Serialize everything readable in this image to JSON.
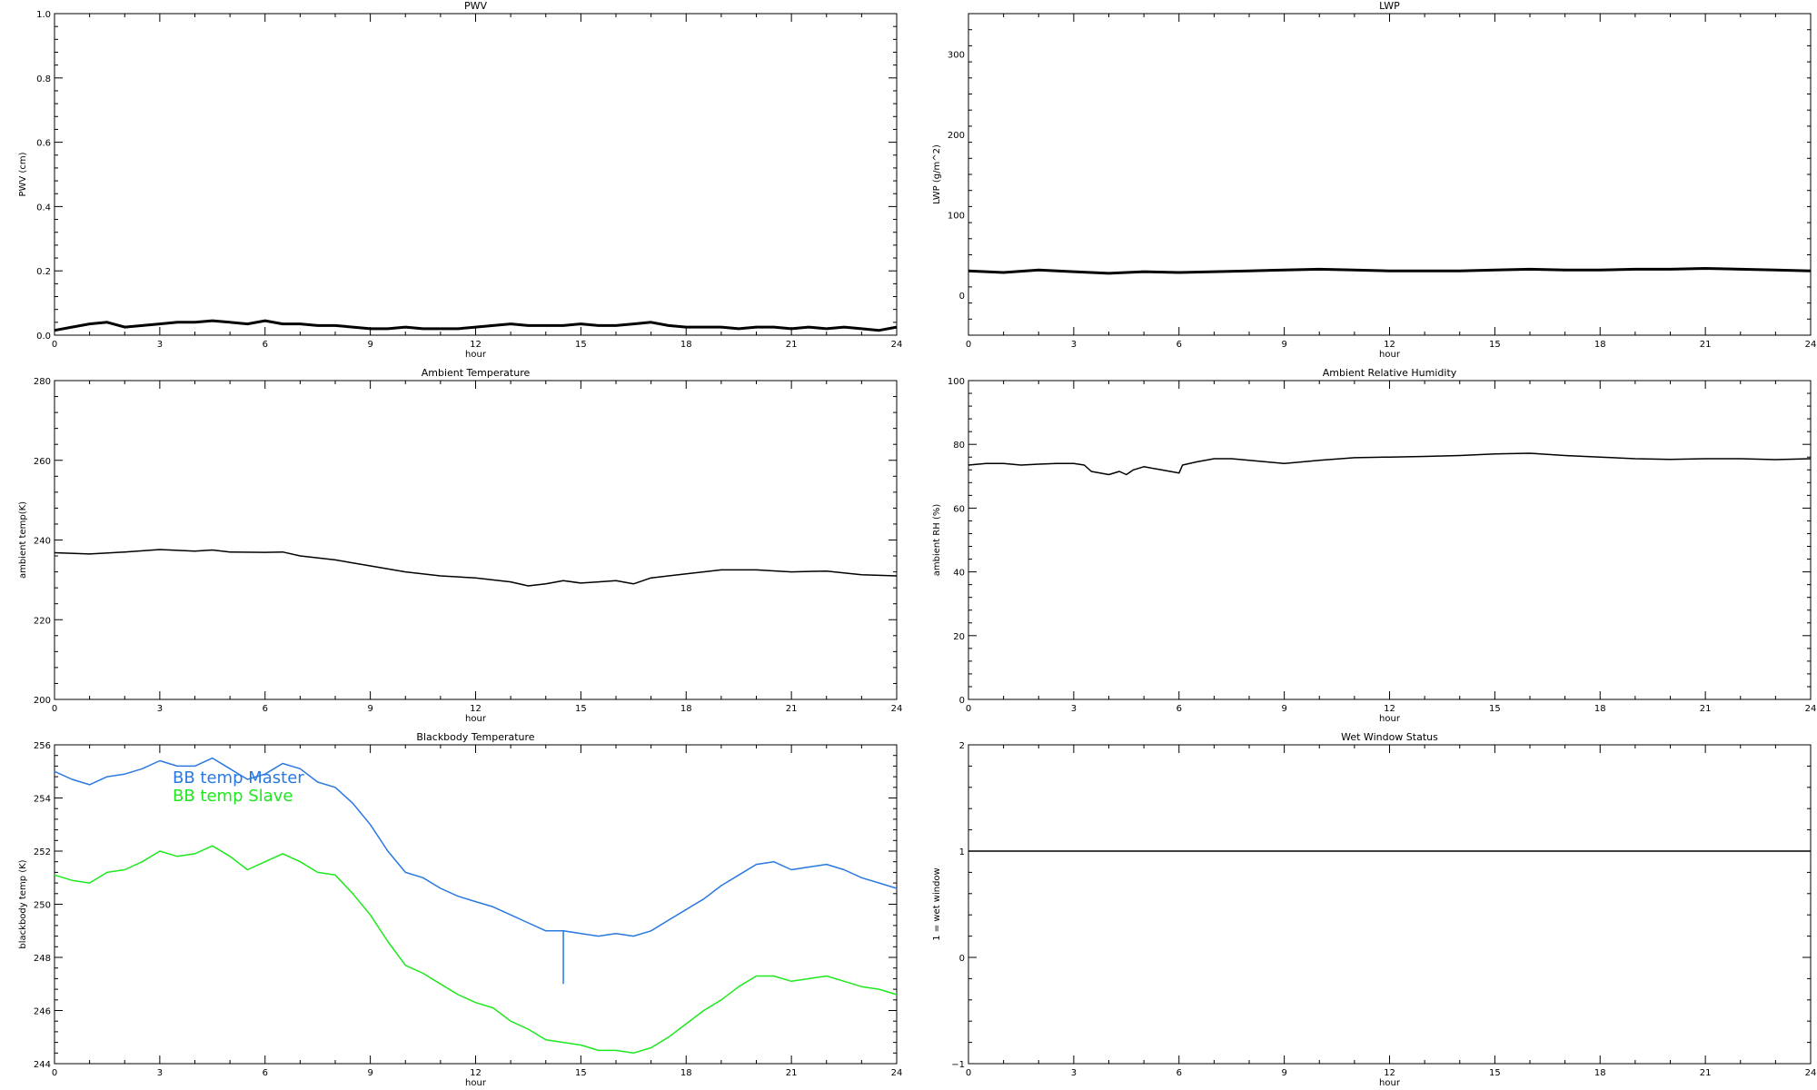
{
  "chart_data": [
    {
      "type": "line",
      "title": "PWV",
      "xlabel": "hour",
      "ylabel": "PWV (cm)",
      "xlim": [
        0,
        24
      ],
      "ylim": [
        0,
        1
      ],
      "xticks": [
        0,
        3,
        6,
        9,
        12,
        15,
        18,
        21,
        24
      ],
      "yticks": [
        0.0,
        0.2,
        0.4,
        0.6,
        0.8,
        1.0
      ],
      "ytick_labels": [
        "0.0",
        "0.2",
        "0.4",
        "0.6",
        "0.8",
        "1.0"
      ],
      "color_hint": "#000000",
      "series": [
        {
          "x": [
            0,
            0.5,
            1,
            1.5,
            2,
            2.5,
            3,
            3.5,
            4,
            4.5,
            5,
            5.5,
            6,
            6.5,
            7,
            7.5,
            8,
            8.5,
            9,
            9.5,
            10,
            10.5,
            11,
            11.5,
            12,
            12.5,
            13,
            13.5,
            14,
            14.5,
            15,
            15.5,
            16,
            16.5,
            17,
            17.5,
            18,
            18.5,
            19,
            19.5,
            20,
            20.5,
            21,
            21.5,
            22,
            22.5,
            23,
            23.5,
            24
          ],
          "values": [
            0.015,
            0.025,
            0.035,
            0.04,
            0.025,
            0.03,
            0.035,
            0.04,
            0.04,
            0.045,
            0.04,
            0.035,
            0.045,
            0.035,
            0.035,
            0.03,
            0.03,
            0.025,
            0.02,
            0.02,
            0.025,
            0.02,
            0.02,
            0.02,
            0.025,
            0.03,
            0.035,
            0.03,
            0.03,
            0.03,
            0.035,
            0.03,
            0.03,
            0.035,
            0.04,
            0.03,
            0.025,
            0.025,
            0.025,
            0.02,
            0.025,
            0.025,
            0.02,
            0.025,
            0.02,
            0.025,
            0.02,
            0.015,
            0.025
          ]
        }
      ]
    },
    {
      "type": "line",
      "title": "LWP",
      "xlabel": "hour",
      "ylabel": "LWP (g/m^2)",
      "xlim": [
        0,
        24
      ],
      "ylim": [
        -50,
        350
      ],
      "xticks": [
        0,
        3,
        6,
        9,
        12,
        15,
        18,
        21,
        24
      ],
      "yticks": [
        0,
        100,
        200,
        300
      ],
      "ytick_labels": [
        "0",
        "100",
        "200",
        "300"
      ],
      "series": [
        {
          "x": [
            0,
            1,
            2,
            3,
            4,
            5,
            6,
            7,
            8,
            9,
            10,
            11,
            12,
            13,
            14,
            15,
            16,
            17,
            18,
            19,
            20,
            21,
            22,
            23,
            24
          ],
          "values": [
            30,
            28,
            31,
            29,
            27,
            29,
            28,
            29,
            30,
            31,
            32,
            31,
            30,
            30,
            30,
            31,
            32,
            31,
            31,
            32,
            32,
            33,
            32,
            31,
            30
          ]
        }
      ]
    },
    {
      "type": "line",
      "title": "Ambient Temperature",
      "xlabel": "hour",
      "ylabel": "ambient temp(K)",
      "xlim": [
        0,
        24
      ],
      "ylim": [
        200,
        280
      ],
      "xticks": [
        0,
        3,
        6,
        9,
        12,
        15,
        18,
        21,
        24
      ],
      "yticks": [
        200,
        220,
        240,
        260,
        280
      ],
      "ytick_labels": [
        "200",
        "220",
        "240",
        "260",
        "280"
      ],
      "series": [
        {
          "x": [
            0,
            1,
            2,
            3,
            4,
            4.5,
            5,
            6,
            6.5,
            7,
            8,
            9,
            10,
            11,
            12,
            13,
            13.5,
            14,
            14.5,
            15,
            15.5,
            16,
            16.5,
            17,
            18,
            19,
            20,
            21,
            22,
            23,
            24
          ],
          "values": [
            236.8,
            236.5,
            237.0,
            237.6,
            237.2,
            237.5,
            237.0,
            236.9,
            237.0,
            236.0,
            235.0,
            233.5,
            232.0,
            231.0,
            230.5,
            229.5,
            228.5,
            229.0,
            229.8,
            229.2,
            229.5,
            229.8,
            229.0,
            230.5,
            231.5,
            232.5,
            232.5,
            232.0,
            232.2,
            231.3,
            231.0
          ]
        }
      ]
    },
    {
      "type": "line",
      "title": "Ambient Relative Humidity",
      "xlabel": "hour",
      "ylabel": "ambient RH (%)",
      "xlim": [
        0,
        24
      ],
      "ylim": [
        0,
        100
      ],
      "xticks": [
        0,
        3,
        6,
        9,
        12,
        15,
        18,
        21,
        24
      ],
      "yticks": [
        0,
        20,
        40,
        60,
        80,
        100
      ],
      "ytick_labels": [
        "0",
        "20",
        "40",
        "60",
        "80",
        "100"
      ],
      "series": [
        {
          "x": [
            0,
            0.5,
            1,
            1.5,
            2,
            2.5,
            3,
            3.3,
            3.5,
            4,
            4.3,
            4.5,
            4.7,
            5,
            5.5,
            6,
            6.1,
            6.5,
            7,
            7.5,
            8,
            8.5,
            9,
            10,
            11,
            12,
            13,
            14,
            15,
            16,
            17,
            18,
            19,
            20,
            21,
            22,
            23,
            24
          ],
          "values": [
            73.5,
            74.0,
            74.0,
            73.5,
            73.8,
            74.0,
            74.0,
            73.5,
            71.5,
            70.5,
            71.5,
            70.5,
            72.0,
            73.0,
            72.0,
            71.0,
            73.5,
            74.5,
            75.5,
            75.5,
            75.0,
            74.5,
            74.0,
            75.0,
            75.8,
            76.0,
            76.2,
            76.5,
            77.0,
            77.2,
            76.5,
            76.0,
            75.5,
            75.3,
            75.5,
            75.5,
            75.2,
            75.5
          ]
        }
      ]
    },
    {
      "type": "line",
      "title": "Blackbody Temperature",
      "xlabel": "hour",
      "ylabel": "blackbody temp (K)",
      "xlim": [
        0,
        24
      ],
      "ylim": [
        244,
        256
      ],
      "xticks": [
        0,
        3,
        6,
        9,
        12,
        15,
        18,
        21,
        24
      ],
      "yticks": [
        244,
        246,
        248,
        250,
        252,
        254,
        256
      ],
      "ytick_labels": [
        "244",
        "246",
        "248",
        "250",
        "252",
        "254",
        "256"
      ],
      "legend": "top-left",
      "series": [
        {
          "name": "BB temp Master",
          "color": "#2979e0",
          "x": [
            0,
            0.5,
            1,
            1.5,
            2,
            2.5,
            3,
            3.5,
            4,
            4.5,
            5,
            5.5,
            6,
            6.5,
            7,
            7.5,
            8,
            8.5,
            9,
            9.5,
            10,
            10.5,
            11,
            11.5,
            12,
            12.5,
            13,
            13.5,
            14,
            14.5,
            15,
            15.5,
            16,
            16.5,
            17,
            17.5,
            18,
            18.5,
            19,
            19.5,
            20,
            20.5,
            21,
            21.5,
            22,
            22.5,
            23,
            23.5,
            24
          ],
          "values": [
            255.0,
            254.7,
            254.5,
            254.8,
            254.9,
            255.1,
            255.4,
            255.2,
            255.2,
            255.5,
            255.1,
            254.7,
            254.9,
            255.3,
            255.1,
            254.6,
            254.4,
            253.8,
            253.0,
            252.0,
            251.2,
            251.0,
            250.6,
            250.3,
            250.1,
            249.9,
            249.6,
            249.3,
            249.0,
            249.0,
            248.9,
            248.8,
            248.9,
            248.8,
            249.0,
            249.4,
            249.8,
            250.2,
            250.7,
            251.1,
            251.5,
            251.6,
            251.3,
            251.4,
            251.5,
            251.3,
            251.0,
            250.8,
            250.6
          ]
        },
        {
          "name": "BB temp Slave",
          "color": "#1ee81e",
          "x": [
            0,
            0.5,
            1,
            1.5,
            2,
            2.5,
            3,
            3.5,
            4,
            4.5,
            5,
            5.5,
            6,
            6.5,
            7,
            7.5,
            8,
            8.5,
            9,
            9.5,
            10,
            10.5,
            11,
            11.5,
            12,
            12.5,
            13,
            13.5,
            14,
            14.5,
            15,
            15.5,
            16,
            16.5,
            17,
            17.5,
            18,
            18.5,
            19,
            19.5,
            20,
            20.5,
            21,
            21.5,
            22,
            22.5,
            23,
            23.5,
            24
          ],
          "values": [
            251.1,
            250.9,
            250.8,
            251.2,
            251.3,
            251.6,
            252.0,
            251.8,
            251.9,
            252.2,
            251.8,
            251.3,
            251.6,
            251.9,
            251.6,
            251.2,
            251.1,
            250.4,
            249.6,
            248.6,
            247.7,
            247.4,
            247.0,
            246.6,
            246.3,
            246.1,
            245.6,
            245.3,
            244.9,
            244.8,
            244.7,
            244.5,
            244.5,
            244.4,
            244.6,
            245.0,
            245.5,
            246.0,
            246.4,
            246.9,
            247.3,
            247.3,
            247.1,
            247.2,
            247.3,
            247.1,
            246.9,
            246.8,
            246.6
          ]
        }
      ],
      "annotation": {
        "x": 14.5,
        "y_from": 249.0,
        "y_to": 247.0,
        "color": "#2979e0"
      }
    },
    {
      "type": "line",
      "title": "Wet Window Status",
      "xlabel": "hour",
      "ylabel": "1 = wet window",
      "xlim": [
        0,
        24
      ],
      "ylim": [
        -1,
        2
      ],
      "xticks": [
        0,
        3,
        6,
        9,
        12,
        15,
        18,
        21,
        24
      ],
      "yticks": [
        -1,
        0,
        1,
        2
      ],
      "ytick_labels": [
        "−1",
        "0",
        "1",
        "2"
      ],
      "series": [
        {
          "x": [
            0,
            24
          ],
          "values": [
            1,
            1
          ]
        }
      ]
    }
  ]
}
